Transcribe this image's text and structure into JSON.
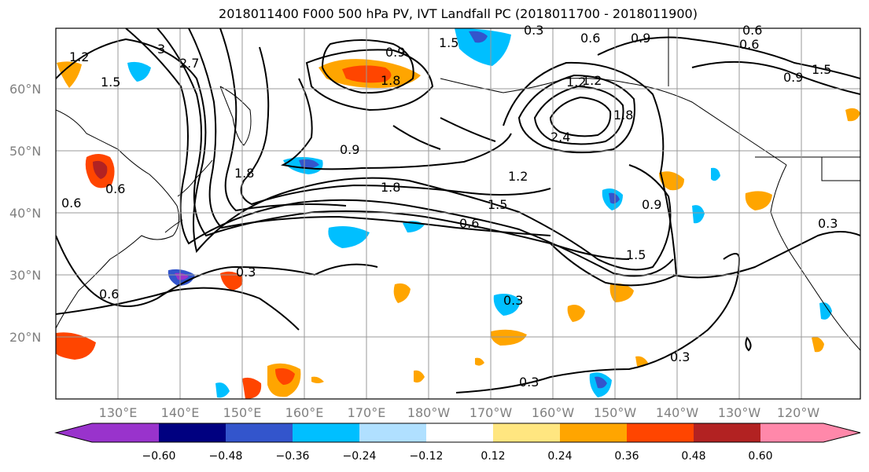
{
  "title": "2018011400 F000 500 hPa PV, IVT Landfall PC (2018011700 - 2018011900)",
  "lat_labels": [
    "60°N",
    "50°N",
    "40°N",
    "30°N",
    "20°N"
  ],
  "lon_labels": [
    "130°E",
    "140°E",
    "150°E",
    "160°E",
    "170°E",
    "180°W",
    "170°W",
    "160°W",
    "150°W",
    "140°W",
    "130°W",
    "120°W"
  ],
  "colorbar": {
    "ticks": [
      "−0.60",
      "−0.48",
      "−0.36",
      "−0.24",
      "−0.12",
      "0.12",
      "0.24",
      "0.36",
      "0.48",
      "0.60"
    ],
    "colors": [
      "#9933cc",
      "#000080",
      "#3355cc",
      "#00bfff",
      "#b0e0ff",
      "#ffffff",
      "#ffe680",
      "#ffa500",
      "#ff4500",
      "#b22222",
      "#ff88aa"
    ]
  },
  "contour_labels": [
    "1.2",
    "1.5",
    "3",
    "2.7",
    "1.8",
    "0.9",
    "0.6",
    "0.3",
    "1.2",
    "0.6",
    "1.5",
    "2.4",
    "1.5",
    "1.2",
    "0.9",
    "1.5",
    "1.8",
    "0.9",
    "0.6",
    "1.5",
    "1.8",
    "0.6",
    "0.3",
    "0.3",
    "0.3",
    "0.3",
    "0.6",
    "0.3",
    "0.9",
    "0.6",
    "1.2",
    "0.9",
    "0.6",
    "1.8"
  ]
}
